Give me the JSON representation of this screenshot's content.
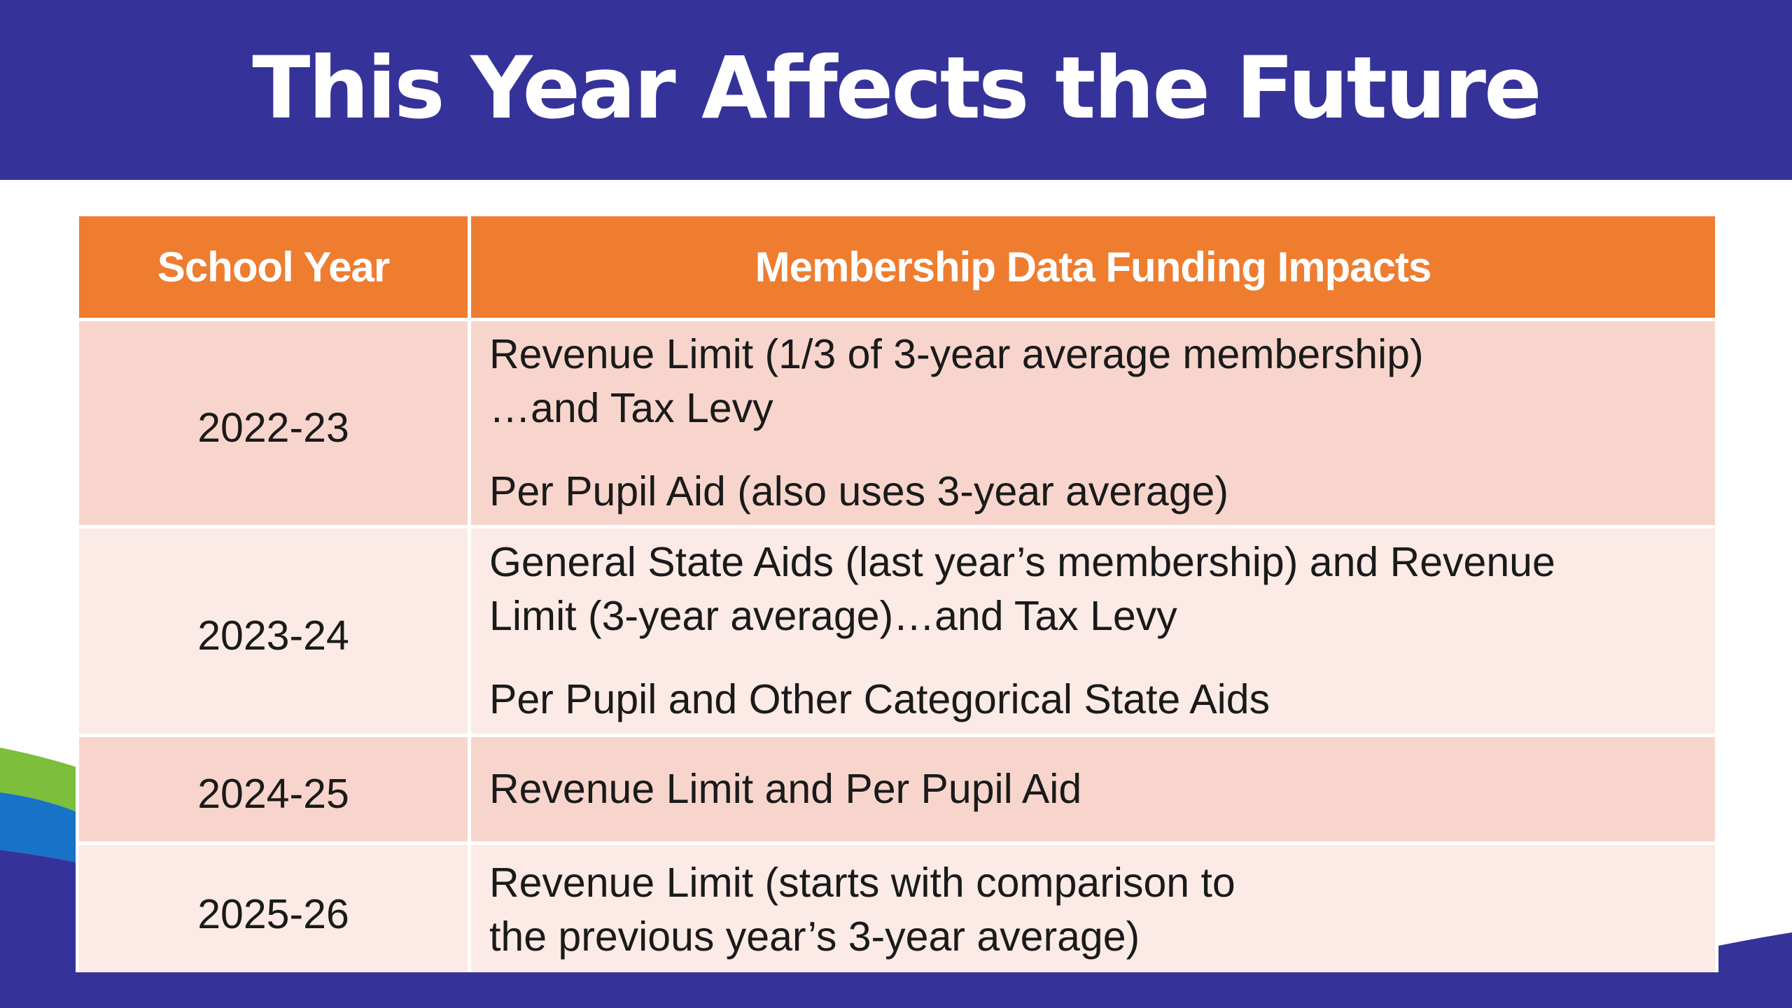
{
  "title": "This Year Affects the Future",
  "colors": {
    "title_bar": "#353399",
    "header_fill": "#ee7d30",
    "row_dark": "#f8d5cc",
    "row_light": "#fbeae6",
    "accent_green": "#7dbe3a",
    "accent_blue": "#1673c8"
  },
  "table": {
    "headers": [
      "School Year",
      "Membership Data Funding Impacts"
    ],
    "rows": [
      {
        "year": "2022-23",
        "lines_a": [
          "Revenue Limit (1/3 of 3-year average membership)",
          "…and Tax Levy"
        ],
        "line_b": "Per Pupil Aid (also uses 3-year average)"
      },
      {
        "year": "2023-24",
        "lines_a": [
          "General State Aids (last year’s membership) and Revenue",
          "Limit (3-year average)…and Tax Levy"
        ],
        "line_b": "Per Pupil and Other Categorical State Aids"
      },
      {
        "year": "2024-25",
        "lines_a": [
          "Revenue Limit and Per Pupil Aid"
        ]
      },
      {
        "year": "2025-26",
        "lines_a": [
          "Revenue Limit (starts with comparison to",
          "the previous year’s 3-year average)"
        ]
      }
    ]
  }
}
